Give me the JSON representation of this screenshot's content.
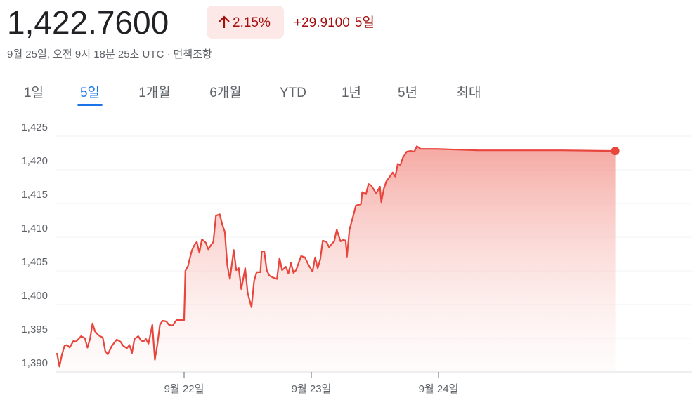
{
  "header": {
    "price": "1,422.7600",
    "change_pct": "2.15%",
    "change": "+29.9100",
    "period": "5일",
    "timestamp": "9월 25일, 오전 9시 18분 25초 UTC ·",
    "disclaimer": "면책조항"
  },
  "tabs": [
    "1일",
    "5일",
    "1개월",
    "6개월",
    "YTD",
    "1년",
    "5년",
    "최대"
  ],
  "selected_tab": 1,
  "chart_data": {
    "type": "line",
    "color": "#e8453c",
    "x": [
      21.0,
      21.02,
      21.04,
      21.06,
      21.08,
      21.1,
      21.13,
      21.15,
      21.17,
      21.19,
      21.22,
      21.24,
      21.26,
      21.28,
      21.3,
      21.33,
      21.36,
      21.38,
      21.4,
      21.43,
      21.45,
      21.47,
      21.5,
      21.52,
      21.55,
      21.57,
      21.59,
      21.61,
      21.64,
      21.66,
      21.68,
      21.7,
      21.72,
      21.75,
      21.77,
      21.79,
      21.81,
      21.83,
      21.86,
      21.88,
      21.91,
      21.94,
      21.98,
      22.0,
      22.01,
      22.03,
      22.06,
      22.08,
      22.1,
      22.12,
      22.14,
      22.17,
      22.19,
      22.21,
      22.23,
      22.25,
      22.28,
      22.3,
      22.32,
      22.34,
      22.36,
      22.39,
      22.41,
      22.43,
      22.45,
      22.48,
      22.5,
      22.52,
      22.53,
      22.55,
      22.57,
      22.6,
      22.61,
      22.63,
      22.65,
      22.67,
      22.7,
      22.73,
      22.75,
      22.77,
      22.8,
      22.82,
      22.84,
      22.86,
      22.88,
      22.92,
      22.95,
      22.98,
      23.01,
      23.03,
      23.05,
      23.07,
      23.09,
      23.12,
      23.14,
      23.16,
      23.18,
      23.2,
      23.23,
      23.25,
      23.27,
      23.28,
      23.3,
      23.33,
      23.35,
      23.37,
      23.39,
      23.4,
      23.43,
      23.45,
      23.47,
      23.49,
      23.51,
      23.54,
      23.55,
      23.57,
      23.59,
      23.61,
      23.64,
      23.66,
      23.68,
      23.7,
      23.72,
      23.75,
      23.78,
      23.81,
      23.83,
      23.86,
      23.98,
      24.31,
      24.97,
      25.39
    ],
    "values": [
      1392.8,
      1390.8,
      1392.6,
      1393.9,
      1394.0,
      1393.6,
      1394.6,
      1394.5,
      1394.9,
      1395.3,
      1395.0,
      1393.6,
      1394.9,
      1397.2,
      1396.0,
      1395.4,
      1395.1,
      1393.1,
      1392.6,
      1393.8,
      1394.3,
      1394.8,
      1394.5,
      1393.9,
      1393.5,
      1394.0,
      1392.8,
      1394.9,
      1395.3,
      1394.7,
      1394.5,
      1394.9,
      1394.2,
      1397.0,
      1391.8,
      1394.1,
      1397.0,
      1397.6,
      1397.5,
      1397.0,
      1396.9,
      1397.7,
      1397.7,
      1397.7,
      1405.0,
      1405.7,
      1408.0,
      1408.8,
      1409.3,
      1407.7,
      1409.7,
      1409.2,
      1408.2,
      1408.8,
      1409.3,
      1413.2,
      1413.4,
      1411.9,
      1410.8,
      1405.8,
      1403.8,
      1408.1,
      1405.1,
      1405.4,
      1402.3,
      1405.4,
      1401.7,
      1400.3,
      1399.6,
      1403.5,
      1404.8,
      1404.8,
      1407.9,
      1407.9,
      1405.1,
      1404.3,
      1404.0,
      1403.8,
      1406.9,
      1405.1,
      1405.6,
      1404.6,
      1406.2,
      1404.7,
      1405.1,
      1407.2,
      1407.0,
      1405.8,
      1404.9,
      1407.0,
      1405.4,
      1406.7,
      1409.5,
      1409.3,
      1408.5,
      1409.0,
      1409.4,
      1411.1,
      1409.4,
      1409.6,
      1409.5,
      1407.1,
      1411.1,
      1413.2,
      1414.7,
      1414.8,
      1414.9,
      1416.7,
      1416.4,
      1417.9,
      1417.7,
      1417.1,
      1416.5,
      1417.5,
      1415.2,
      1417.2,
      1418.3,
      1418.8,
      1419.6,
      1419.0,
      1420.9,
      1420.7,
      1421.8,
      1422.7,
      1422.8,
      1422.7,
      1423.5,
      1423.1,
      1423.1,
      1422.9,
      1422.9,
      1422.8
    ],
    "xlim": [
      21,
      26
    ],
    "xticks": [
      {
        "value": 22,
        "label": "9월 22일"
      },
      {
        "value": 23,
        "label": "9월 23일"
      },
      {
        "value": 24,
        "label": "9월 24일"
      }
    ],
    "ylim": [
      1390,
      1425
    ],
    "yticks": [
      {
        "value": 1390,
        "label": "1,390"
      },
      {
        "value": 1395,
        "label": "1,395"
      },
      {
        "value": 1400,
        "label": "1,400"
      },
      {
        "value": 1405,
        "label": "1,405"
      },
      {
        "value": 1410,
        "label": "1,410"
      },
      {
        "value": 1415,
        "label": "1,415"
      },
      {
        "value": 1420,
        "label": "1,420"
      },
      {
        "value": 1425,
        "label": "1,425"
      }
    ],
    "grid": true
  }
}
